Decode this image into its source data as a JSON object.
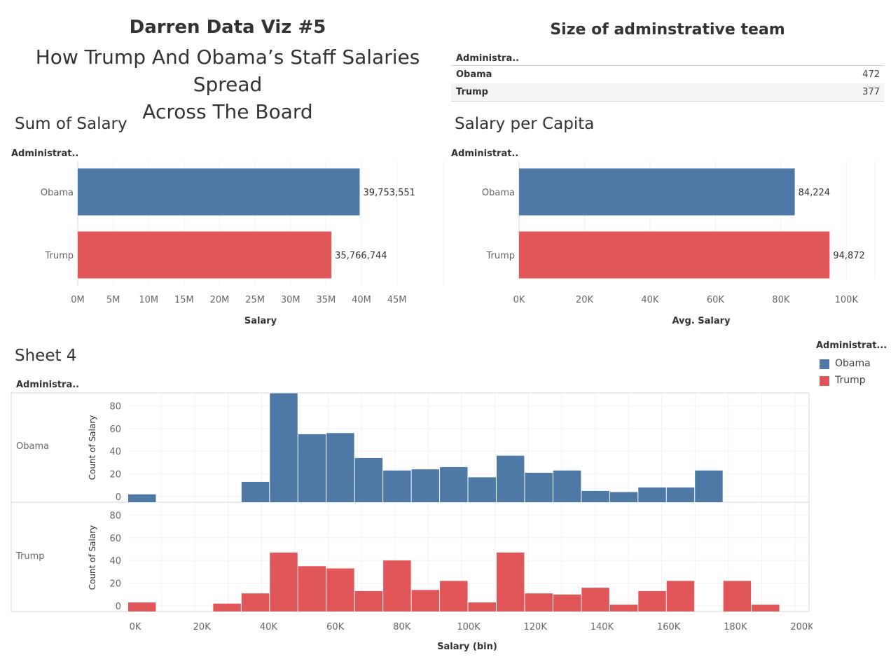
{
  "header": {
    "title": "Darren Data Viz #5",
    "subtitle_line1": "How Trump And Obama’s Staff Salaries Spread",
    "subtitle_line2": "Across The Board"
  },
  "team": {
    "title": "Size of adminstrative team",
    "column_header": "Administra..",
    "rows": [
      {
        "name": "Obama",
        "value": "472"
      },
      {
        "name": "Trump",
        "value": "377"
      }
    ]
  },
  "colors": {
    "obama": "#4e79a7",
    "trump": "#e15759"
  },
  "legend": {
    "title": "Administrat...",
    "items": [
      {
        "name": "Obama",
        "color": "#4e79a7"
      },
      {
        "name": "Trump",
        "color": "#e15759"
      }
    ]
  },
  "chart_data": [
    {
      "type": "bar",
      "title": "Sum of Salary",
      "row_header": "Administrat..",
      "categories": [
        "Obama",
        "Trump"
      ],
      "values": [
        39753551,
        35766744
      ],
      "value_labels": [
        "39,753,551",
        "35,766,744"
      ],
      "xlabel": "Salary",
      "xticks": [
        "0M",
        "5M",
        "10M",
        "15M",
        "20M",
        "25M",
        "30M",
        "35M",
        "40M",
        "45M"
      ],
      "xlim": [
        0,
        48000000
      ],
      "orientation": "horizontal"
    },
    {
      "type": "bar",
      "title": "Salary per Capita",
      "row_header": "Administrat..",
      "categories": [
        "Obama",
        "Trump"
      ],
      "values": [
        84224,
        94872
      ],
      "value_labels": [
        "84,224",
        "94,872"
      ],
      "xlabel": "Avg. Salary",
      "xticks": [
        "0K",
        "20K",
        "40K",
        "60K",
        "80K",
        "100K"
      ],
      "xlim": [
        0,
        104000
      ],
      "orientation": "horizontal"
    },
    {
      "type": "bar",
      "title": "Sheet 4",
      "row_header": "Administra..",
      "xlabel": "Salary (bin)",
      "ylabel": "Count of Salary",
      "xticks": [
        "0K",
        "20K",
        "40K",
        "60K",
        "80K",
        "100K",
        "120K",
        "140K",
        "160K",
        "180K",
        "200K"
      ],
      "yticks": [
        "0",
        "20",
        "40",
        "60",
        "80"
      ],
      "ylim": [
        0,
        92
      ],
      "bin_width": 8500,
      "series": [
        {
          "name": "Obama",
          "bins": [
            0,
            34000,
            42500,
            51000,
            59500,
            68000,
            76500,
            85000,
            93500,
            102000,
            110500,
            119000,
            127500,
            136000,
            144500,
            153000,
            161500,
            170000
          ],
          "values": [
            2,
            13,
            91,
            55,
            56,
            34,
            23,
            24,
            26,
            17,
            36,
            21,
            23,
            5,
            4,
            8,
            8,
            23
          ]
        },
        {
          "name": "Trump",
          "bins": [
            0,
            25500,
            34000,
            42500,
            51000,
            59500,
            68000,
            76500,
            85000,
            93500,
            102000,
            110500,
            119000,
            127500,
            136000,
            144500,
            153000,
            161500,
            178500,
            187000
          ],
          "values": [
            3,
            2,
            11,
            47,
            35,
            33,
            13,
            40,
            14,
            22,
            3,
            47,
            11,
            10,
            16,
            1,
            13,
            22,
            22,
            1
          ]
        }
      ]
    }
  ]
}
